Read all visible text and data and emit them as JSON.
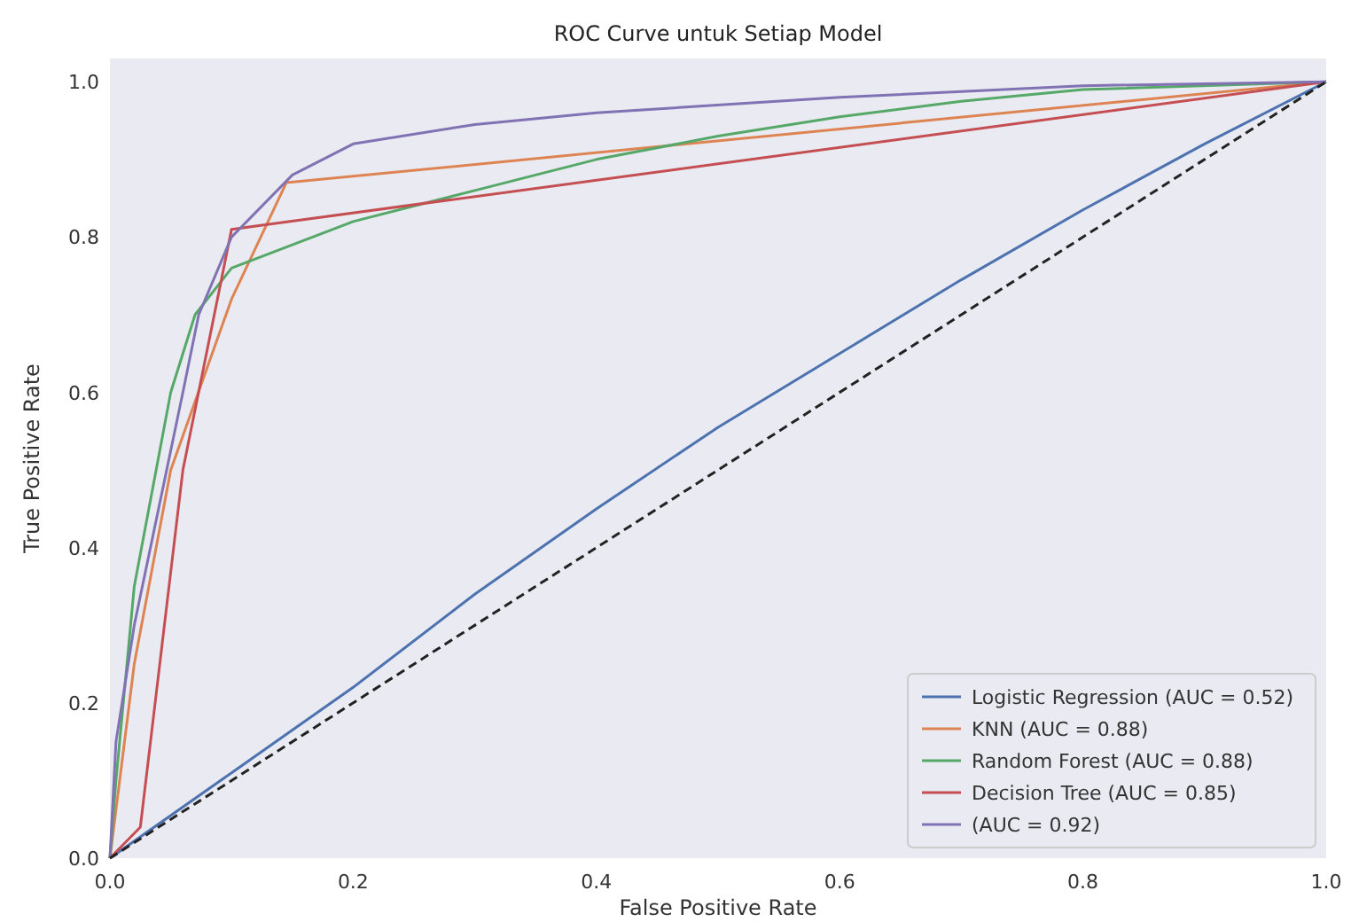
{
  "chart_data": {
    "type": "line",
    "title": "ROC Curve untuk Setiap Model",
    "xlabel": "False Positive Rate",
    "ylabel": "True Positive Rate",
    "xlim": [
      0,
      1
    ],
    "ylim": [
      0,
      1.03
    ],
    "xticks": [
      {
        "value": 0,
        "label": "0.0"
      },
      0.2,
      0.4,
      0.6,
      0.8,
      {
        "value": 1,
        "label": "1.0"
      }
    ],
    "yticks": [
      {
        "value": 0,
        "label": "0.0"
      },
      0.2,
      0.4,
      0.6,
      0.8,
      {
        "value": 1,
        "label": "1.0"
      }
    ],
    "grid": false,
    "legend": "bottom right",
    "marker": "none",
    "series": [
      {
        "name": "Logistic Regression (AUC = 0.52)",
        "color": "#4c72b0",
        "x": [
          0,
          0.1,
          0.2,
          0.3,
          0.4,
          0.5,
          0.6,
          0.7,
          0.8,
          0.9,
          1
        ],
        "values": [
          0,
          0.11,
          0.22,
          0.34,
          0.45,
          0.555,
          0.65,
          0.745,
          0.835,
          0.92,
          1
        ]
      },
      {
        "name": "KNN (AUC = 0.88)",
        "color": "#dd8452",
        "x": [
          0,
          0.02,
          0.05,
          0.1,
          0.145,
          1
        ],
        "values": [
          0,
          0.25,
          0.5,
          0.72,
          0.87,
          1
        ]
      },
      {
        "name": "Random Forest (AUC = 0.88)",
        "color": "#55a868",
        "x": [
          0,
          0.005,
          0.02,
          0.05,
          0.07,
          0.1,
          0.15,
          0.2,
          0.3,
          0.4,
          0.5,
          0.6,
          0.7,
          0.8,
          1
        ],
        "values": [
          0,
          0.1,
          0.35,
          0.6,
          0.7,
          0.76,
          0.79,
          0.82,
          0.86,
          0.9,
          0.93,
          0.955,
          0.975,
          0.99,
          1
        ]
      },
      {
        "name": "Decision Tree (AUC = 0.85)",
        "color": "#c44e52",
        "x": [
          0,
          0.025,
          0.06,
          0.1,
          1
        ],
        "values": [
          0,
          0.04,
          0.5,
          0.81,
          1
        ]
      },
      {
        "name": "(AUC = 0.92)",
        "color": "#8172b3",
        "x": [
          0,
          0.005,
          0.02,
          0.04,
          0.06,
          0.073,
          0.1,
          0.15,
          0.2,
          0.3,
          0.4,
          0.6,
          0.8,
          1
        ],
        "values": [
          0,
          0.15,
          0.3,
          0.45,
          0.6,
          0.7,
          0.8,
          0.88,
          0.92,
          0.945,
          0.96,
          0.98,
          0.995,
          1
        ]
      },
      {
        "color": "#222222",
        "line_style": "dashed",
        "x": [
          0,
          1
        ],
        "values": [
          0,
          1
        ]
      }
    ]
  }
}
